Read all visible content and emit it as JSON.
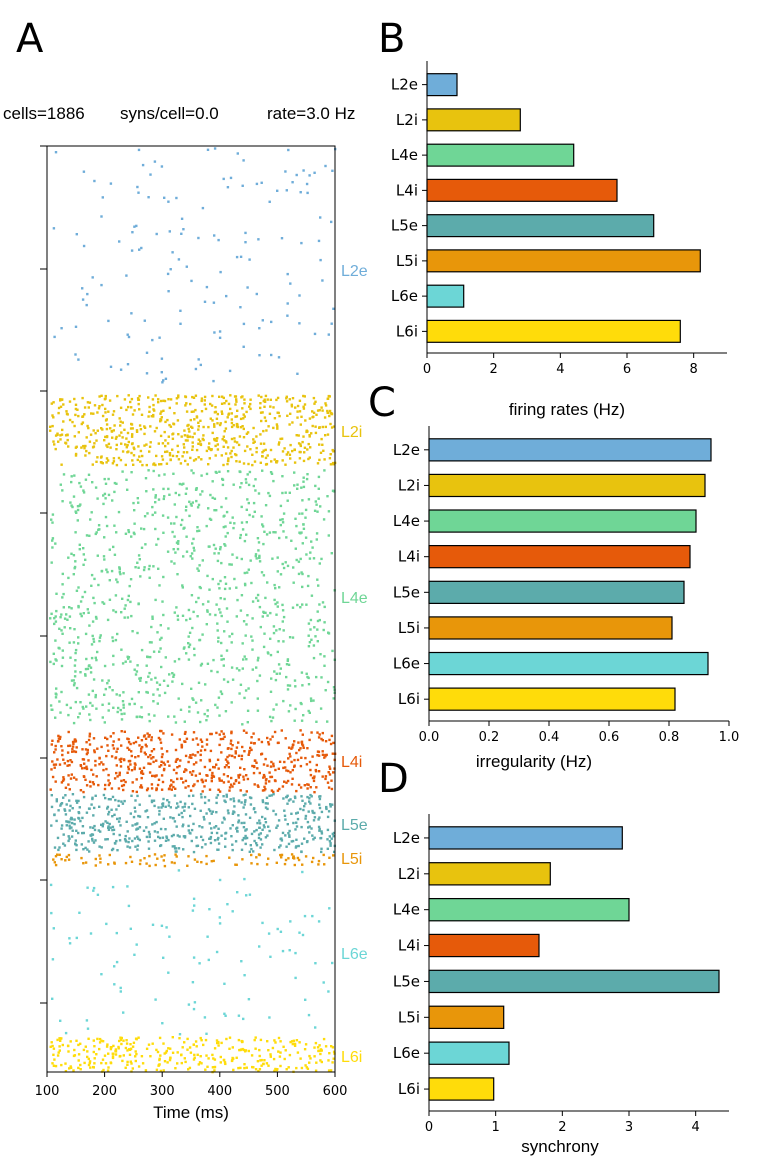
{
  "panels": {
    "a": "A",
    "b": "B",
    "c": "C",
    "d": "D"
  },
  "header": {
    "cells": "cells=1886",
    "syns": "syns/cell=0.0",
    "rate": "rate=3.0 Hz"
  },
  "colors": {
    "L2e": "#6fadd9",
    "L2i": "#e8c30e",
    "L4e": "#6fd696",
    "L4i": "#e65a0a",
    "L5e": "#5cabab",
    "L5i": "#e8960a",
    "L6e": "#6cd6d6",
    "L6i": "#ffdc0a"
  },
  "chart_data": [
    {
      "id": "A",
      "type": "scatter",
      "title": "",
      "xlabel": "Time (ms)",
      "xlim": [
        100,
        600
      ],
      "xticks": [
        "100",
        "200",
        "300",
        "400",
        "500",
        "600"
      ],
      "populations": [
        {
          "name": "L2e",
          "label": "L2e",
          "color": "#6fadd9",
          "density": "sparse"
        },
        {
          "name": "L2i",
          "label": "L2i",
          "color": "#e8c30e",
          "density": "dense"
        },
        {
          "name": "L4e",
          "label": "L4e",
          "color": "#6fd696",
          "density": "medium"
        },
        {
          "name": "L4i",
          "label": "L4i",
          "color": "#e65a0a",
          "density": "dense"
        },
        {
          "name": "L5e",
          "label": "L5e",
          "color": "#5cabab",
          "density": "dense"
        },
        {
          "name": "L5i",
          "label": "L5i",
          "color": "#e8960a",
          "density": "dense"
        },
        {
          "name": "L6e",
          "label": "L6e",
          "color": "#6cd6d6",
          "density": "sparse"
        },
        {
          "name": "L6i",
          "label": "L6i",
          "color": "#ffdc0a",
          "density": "dense"
        }
      ]
    },
    {
      "id": "B",
      "type": "bar",
      "orientation": "horizontal",
      "xlabel": "firing rates (Hz)",
      "categories": [
        "L2e",
        "L2i",
        "L4e",
        "L4i",
        "L5e",
        "L5i",
        "L6e",
        "L6i"
      ],
      "values": [
        0.9,
        2.8,
        4.4,
        5.7,
        6.8,
        8.2,
        1.1,
        7.6
      ],
      "xlim": [
        0,
        9
      ],
      "xticks": [
        0,
        2,
        4,
        6,
        8
      ]
    },
    {
      "id": "C",
      "type": "bar",
      "orientation": "horizontal",
      "xlabel": "irregularity (Hz)",
      "categories": [
        "L2e",
        "L2i",
        "L4e",
        "L4i",
        "L5e",
        "L5i",
        "L6e",
        "L6i"
      ],
      "values": [
        0.94,
        0.92,
        0.89,
        0.87,
        0.85,
        0.81,
        0.93,
        0.82
      ],
      "xlim": [
        0,
        1.0
      ],
      "xticks": [
        0.0,
        0.2,
        0.4,
        0.6,
        0.8,
        1.0
      ]
    },
    {
      "id": "D",
      "type": "bar",
      "orientation": "horizontal",
      "xlabel": "synchrony",
      "categories": [
        "L2e",
        "L2i",
        "L4e",
        "L4i",
        "L5e",
        "L5i",
        "L6e",
        "L6i"
      ],
      "values": [
        2.9,
        1.82,
        3.0,
        1.65,
        4.35,
        1.12,
        1.2,
        0.97
      ],
      "xlim": [
        0,
        4.5
      ],
      "xticks": [
        0,
        1,
        2,
        3,
        4
      ]
    }
  ]
}
